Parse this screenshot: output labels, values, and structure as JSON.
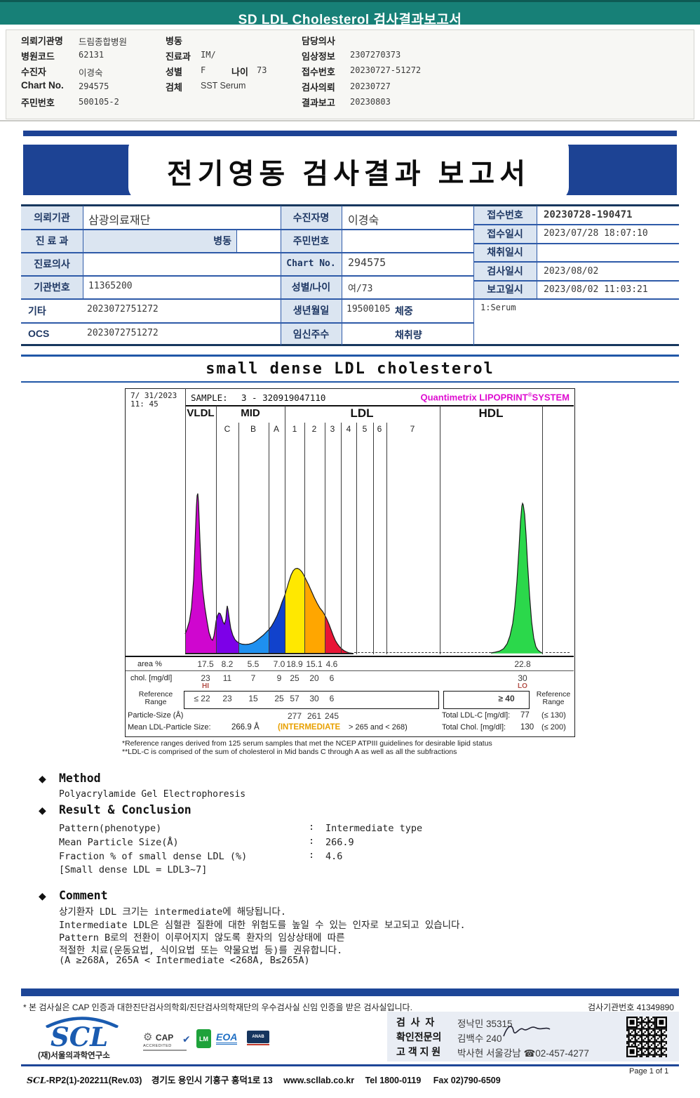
{
  "ui": {
    "bullet": "◆",
    "colon": ":"
  },
  "header": {
    "title": "SD LDL Cholesterol 검사결과보고서",
    "teal": "#178077"
  },
  "patient_header": {
    "col1": [
      {
        "label": "의뢰기관명",
        "value": "드림종합병원"
      },
      {
        "label": "병원코드",
        "value": "62131"
      },
      {
        "label": "수진자",
        "value": "이경숙"
      },
      {
        "label": "Chart No.",
        "value": "294575"
      },
      {
        "label": "주민번호",
        "value": "500105-2"
      }
    ],
    "col2": [
      {
        "label": "병동",
        "value": ""
      },
      {
        "label": "진료과",
        "value": "IM/"
      },
      {
        "label": "성별",
        "value": "F",
        "label2": "나이",
        "value2": "73"
      },
      {
        "label": "검체",
        "value": "SST Serum"
      }
    ],
    "col3": [
      {
        "label": "담당의사",
        "value": ""
      },
      {
        "label": "임상정보",
        "value": "2307270373"
      },
      {
        "label": "접수번호",
        "value": "20230727-51272"
      },
      {
        "label": "검사의뢰",
        "value": "20230727"
      },
      {
        "label": "결과보고",
        "value": "20230803"
      }
    ]
  },
  "banner": {
    "title": "전기영동 검사결과 보고서",
    "blue": "#1d4394"
  },
  "info_table": {
    "rows_left": [
      {
        "label": "의뢰기관",
        "value": "삼광의료재단"
      },
      {
        "label": "진 료 과",
        "value": "",
        "extra_label": "병동"
      },
      {
        "label": "진료의사",
        "value": ""
      },
      {
        "label": "기관번호",
        "value": "11365200"
      },
      {
        "label": "기타",
        "value": "2023072751272"
      },
      {
        "label": "OCS",
        "value": "2023072751272"
      }
    ],
    "rows_mid": [
      {
        "label": "수진자명",
        "value": "이경숙"
      },
      {
        "label": "주민번호",
        "value": ""
      },
      {
        "label": "Chart No.",
        "value": "294575"
      },
      {
        "label": "성별/나이",
        "value": "여/73"
      },
      {
        "label": "생년월일",
        "value": "19500105",
        "extra_label": "체중"
      },
      {
        "label": "임신주수",
        "value": "",
        "extra_label": "채취량"
      }
    ],
    "rows_right": [
      {
        "label": "접수번호",
        "value": "20230728-190471"
      },
      {
        "label": "접수일시",
        "value": "2023/07/28 18:07:10"
      },
      {
        "label": "채취일시",
        "value": ""
      },
      {
        "label": "검사일시",
        "value": "2023/08/02"
      },
      {
        "label": "보고일시",
        "value": "2023/08/02 11:03:21"
      }
    ],
    "note": "1:Serum"
  },
  "section_title": "small dense LDL cholesterol",
  "chart": {
    "datetime_line1": "7/ 31/2023",
    "datetime_line2": "11: 45",
    "sample_label": "SAMPLE:",
    "sample_value": "3 - 320919047110",
    "system_brand": "Quantimetrix LIPOPRINT",
    "system_reg": "®",
    "system_brand2": "SYSTEM",
    "groups": [
      "VLDL",
      "MID",
      "LDL",
      "HDL"
    ],
    "mid_subbands": [
      "C",
      "B",
      "A"
    ],
    "ldl_subbands": [
      "1",
      "2",
      "3",
      "4",
      "5",
      "6",
      "7"
    ],
    "fractions": [
      {
        "band": "VLDL",
        "area": "17.5",
        "chol": "23",
        "flag": "HI",
        "ref": "≤ 22",
        "color": "#cf06cf"
      },
      {
        "band": "MID-C",
        "area": "8.2",
        "chol": "11",
        "ref": "23",
        "color": "#7d00e8"
      },
      {
        "band": "MID-B",
        "area": "5.5",
        "chol": "7",
        "ref": "15",
        "color": "#1e90f0"
      },
      {
        "band": "MID-A",
        "area": "7.0",
        "chol": "9",
        "ref": "25",
        "color": "#1142cc"
      },
      {
        "band": "LDL-1",
        "area": "18.9",
        "chol": "25",
        "ref": "57",
        "particle": "277",
        "color": "#ffe800"
      },
      {
        "band": "LDL-2",
        "area": "15.1",
        "chol": "20",
        "ref": "30",
        "particle": "261",
        "color": "#ffa600"
      },
      {
        "band": "LDL-3",
        "area": "4.6",
        "chol": "6",
        "ref": "6",
        "particle": "245",
        "color": "#e81535"
      },
      {
        "band": "HDL",
        "area": "22.8",
        "chol": "30",
        "flag": "LO",
        "ref": "≥ 40",
        "color": "#2bd84b"
      }
    ],
    "table": {
      "area_label": "area %",
      "chol_label": "chol. [mg/dl]",
      "ref_label_1": "Reference",
      "ref_label_2": "Range",
      "particle_label": "Particle-Size (Å)",
      "mean_label": "Mean LDL-Particle Size:",
      "mean_value": "266.9 Å",
      "mean_flag": "(INTERMEDIATE",
      "mean_range": "> 265 and < 268)",
      "total_ldl_label": "Total LDL-C [mg/dl]:",
      "total_ldl_value": "77",
      "total_ldl_ref": "(≤ 130)",
      "total_chol_label": "Total Chol. [mg/dl]:",
      "total_chol_value": "130",
      "total_chol_ref": "(≤ 200)"
    },
    "footnote1": "*Reference ranges derived from 125 serum samples that met the NCEP ATPIII guidelines for desirable lipid status",
    "footnote2": "**LDL-C is comprised of the sum of cholesterol in Mid bands C through A as well as all the subfractions"
  },
  "chart_data": {
    "type": "area",
    "title": "small dense LDL cholesterol — Quantimetrix LIPOPRINT SYSTEM gel densitometry",
    "categories": [
      "VLDL",
      "MID C",
      "MID B",
      "MID A",
      "LDL 1",
      "LDL 2",
      "LDL 3",
      "HDL"
    ],
    "series": [
      {
        "name": "area %",
        "values": [
          17.5,
          8.2,
          5.5,
          7.0,
          18.9,
          15.1,
          4.6,
          22.8
        ]
      },
      {
        "name": "chol mg/dl",
        "values": [
          23,
          11,
          7,
          9,
          25,
          20,
          6,
          30
        ]
      },
      {
        "name": "reference range",
        "values": [
          "≤22",
          "23",
          "15",
          "25",
          "57",
          "30",
          "6",
          "≥40"
        ]
      },
      {
        "name": "particle size Å",
        "values": [
          null,
          null,
          null,
          null,
          277,
          261,
          245,
          null
        ]
      }
    ],
    "annotations": {
      "VLDL_flag": "HI",
      "HDL_flag": "LO",
      "mean_ldl_particle_size": 266.9,
      "pattern": "INTERMEDIATE > 265 and < 268",
      "total_ldl_c": 77,
      "total_chol": 130
    },
    "legend_position": "none",
    "grid": "vertical-band-dividers"
  },
  "method": {
    "heading": "Method",
    "body": "Polyacrylamide Gel Electrophoresis"
  },
  "result": {
    "heading": "Result & Conclusion",
    "rows": [
      {
        "label": "Pattern(phenotype)",
        "value": "Intermediate type"
      },
      {
        "label": "Mean Particle Size(Å)",
        "value": "266.9"
      },
      {
        "label": "Fraction % of small dense LDL (%)",
        "value": "4.6"
      }
    ],
    "note": "[Small dense LDL = LDL3~7]"
  },
  "comment": {
    "heading": "Comment",
    "lines": [
      "상기환자 LDL 크기는 intermediate에 해당됩니다.",
      "Intermediate LDL은 심혈관 질환에 대한 위험도를 높일 수 있는 인자로 보고되고 있습니다.",
      "Pattern B로의 전환이 이루어지지 않도록 환자의 임상상태에 따른",
      "적절한 치료(운동요법, 식이요법 또는 약물요법 등)를 권유합니다.",
      "(A ≥268A, 265A < Intermediate <268A, B≤265A)"
    ]
  },
  "footer": {
    "cert_line": "* 본 검사실은 CAP 인증과 대한진단검사의학회/진단검사의학재단의 우수검사실 신임 인증을 받은 검사실입니다.",
    "org_number_label": "검사기관번호",
    "org_number": "41349890",
    "logo_text": "SCL",
    "logo_sub": "(재)서울의과학연구소",
    "logos": {
      "cap_top": "CAP",
      "cap_sub": "ACCREDITED",
      "lm": "LM",
      "eoa": "EOA",
      "anab": "ANAB"
    },
    "staff": [
      {
        "label": "검  사  자",
        "value": "정낙민 35315"
      },
      {
        "label": "확인전문의",
        "value": "김백수 240"
      },
      {
        "label": "고 객 지 원",
        "value": "박사현 서울강남 ☎02-457-4277"
      }
    ],
    "doc_code": "SCL-RP2(1)-202211(Rev.03)",
    "address": "경기도 용인시 기흥구 흥덕1로 13",
    "website": "www.scllab.co.kr",
    "tel": "Tel 1800-0119",
    "fax": "Fax 02)790-6509",
    "page": "Page 1 of 1"
  }
}
